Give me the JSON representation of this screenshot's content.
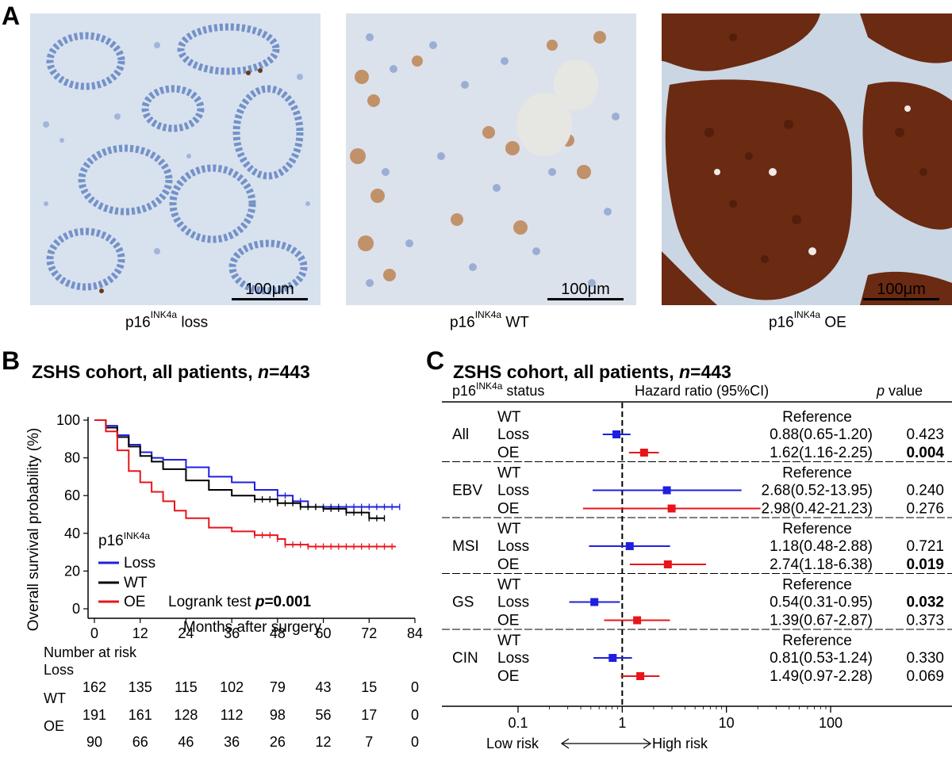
{
  "panel_a": {
    "letter": "A",
    "images": [
      {
        "caption_base": "p16",
        "caption_sup": "INK4a",
        "caption_suffix": "loss",
        "scale": "100μm",
        "stain": "negative"
      },
      {
        "caption_base": "p16",
        "caption_sup": "INK4a",
        "caption_suffix": "WT",
        "scale": "100μm",
        "stain": "patchy"
      },
      {
        "caption_base": "p16",
        "caption_sup": "INK4a",
        "caption_suffix": "OE",
        "scale": "100μm",
        "stain": "diffuse-strong"
      }
    ]
  },
  "panel_b": {
    "letter": "B",
    "title_prefix": "ZSHS cohort, all patients, ",
    "title_n_label": "n",
    "title_n_value": "=443",
    "legend_title_base": "p16",
    "legend_title_sup": "INK4a",
    "logrank_text": "Logrank test ",
    "logrank_p_label": "p",
    "logrank_p_value": "=0.001",
    "risk_header": "Number at risk",
    "colors": {
      "Loss": "#1f1fe0",
      "WT": "#000000",
      "OE": "#e8141b"
    },
    "chart_data": {
      "type": "line",
      "xlabel": "Months after surgery",
      "ylabel": "Overall survival probability (%)",
      "xlim": [
        0,
        84
      ],
      "ylim": [
        0,
        100
      ],
      "xticks": [
        0,
        12,
        24,
        36,
        48,
        60,
        72,
        84
      ],
      "yticks": [
        0,
        20,
        40,
        60,
        80,
        100
      ],
      "series": [
        {
          "name": "Loss",
          "x": [
            0,
            3,
            6,
            9,
            12,
            15,
            18,
            24,
            30,
            36,
            42,
            48,
            52,
            56,
            60,
            66,
            72,
            80
          ],
          "y": [
            100,
            97,
            92,
            87,
            83,
            80,
            79,
            75,
            70,
            67,
            63,
            60,
            57,
            54,
            54,
            54,
            54,
            54
          ]
        },
        {
          "name": "WT",
          "x": [
            0,
            3,
            6,
            9,
            12,
            15,
            18,
            24,
            30,
            36,
            42,
            48,
            54,
            60,
            66,
            72,
            76
          ],
          "y": [
            100,
            96,
            91,
            86,
            81,
            78,
            74,
            68,
            63,
            60,
            58,
            56,
            54,
            53,
            51,
            48,
            48
          ]
        },
        {
          "name": "OE",
          "x": [
            0,
            3,
            6,
            9,
            12,
            15,
            18,
            21,
            24,
            30,
            36,
            42,
            48,
            50,
            56,
            60,
            70,
            79
          ],
          "y": [
            100,
            94,
            84,
            73,
            67,
            62,
            57,
            52,
            48,
            43,
            41,
            39,
            37,
            34,
            33,
            33,
            33,
            33
          ]
        }
      ],
      "risk_table": {
        "times": [
          "0",
          "12",
          "24",
          "36",
          "48",
          "60",
          "72",
          "84"
        ],
        "rows": [
          {
            "label": "Loss",
            "counts": [
              "162",
              "135",
              "115",
              "102",
              "79",
              "43",
              "15",
              "0"
            ]
          },
          {
            "label": "WT",
            "counts": [
              "191",
              "161",
              "128",
              "112",
              "98",
              "56",
              "17",
              "0"
            ]
          },
          {
            "label": "OE",
            "counts": [
              "90",
              "66",
              "46",
              "36",
              "26",
              "12",
              "7",
              "0"
            ]
          }
        ]
      }
    }
  },
  "panel_c": {
    "letter": "C",
    "title_prefix": "ZSHS cohort, all patients, ",
    "title_n_label": "n",
    "title_n_value": "=443",
    "col_status_base": "p16",
    "col_status_sup": "INK4a",
    "col_status_suffix": " status",
    "col_hr": "Hazard ratio (95%CI)",
    "col_p_label": "p",
    "col_p_suffix": " value",
    "low_risk": "Low risk",
    "high_risk": "High risk",
    "colors": {
      "Loss": "#1f1fe0",
      "OE": "#e8141b"
    },
    "chart_data": {
      "type": "scatter",
      "x_scale": "log",
      "xlim": [
        0.1,
        300
      ],
      "xticks": [
        "0.1",
        "1",
        "10",
        "100"
      ],
      "reference_line": 1,
      "groups": [
        {
          "name": "All",
          "rows": [
            {
              "label": "WT",
              "hr_text": "Reference",
              "p": ""
            },
            {
              "label": "Loss",
              "hr": 0.88,
              "lo": 0.65,
              "hi": 1.2,
              "hr_text": "0.88(0.65-1.20)",
              "p": "0.423",
              "bold": false
            },
            {
              "label": "OE",
              "hr": 1.62,
              "lo": 1.16,
              "hi": 2.25,
              "hr_text": "1.62(1.16-2.25)",
              "p": "0.004",
              "bold": true
            }
          ]
        },
        {
          "name": "EBV",
          "rows": [
            {
              "label": "WT",
              "hr_text": "Reference",
              "p": ""
            },
            {
              "label": "Loss",
              "hr": 2.68,
              "lo": 0.52,
              "hi": 13.95,
              "hr_text": "2.68(0.52-13.95)",
              "p": "0.240",
              "bold": false
            },
            {
              "label": "OE",
              "hr": 2.98,
              "lo": 0.42,
              "hi": 21.23,
              "hr_text": "2.98(0.42-21.23)",
              "p": "0.276",
              "bold": false
            }
          ]
        },
        {
          "name": "MSI",
          "rows": [
            {
              "label": "WT",
              "hr_text": "Reference",
              "p": ""
            },
            {
              "label": "Loss",
              "hr": 1.18,
              "lo": 0.48,
              "hi": 2.88,
              "hr_text": "1.18(0.48-2.88)",
              "p": "0.721",
              "bold": false
            },
            {
              "label": "OE",
              "hr": 2.74,
              "lo": 1.18,
              "hi": 6.38,
              "hr_text": "2.74(1.18-6.38)",
              "p": "0.019",
              "bold": true
            }
          ]
        },
        {
          "name": "GS",
          "rows": [
            {
              "label": "WT",
              "hr_text": "Reference",
              "p": ""
            },
            {
              "label": "Loss",
              "hr": 0.54,
              "lo": 0.31,
              "hi": 0.95,
              "hr_text": "0.54(0.31-0.95)",
              "p": "0.032",
              "bold": true
            },
            {
              "label": "OE",
              "hr": 1.39,
              "lo": 0.67,
              "hi": 2.87,
              "hr_text": "1.39(0.67-2.87)",
              "p": "0.373",
              "bold": false
            }
          ]
        },
        {
          "name": "CIN",
          "rows": [
            {
              "label": "WT",
              "hr_text": "Reference",
              "p": ""
            },
            {
              "label": "Loss",
              "hr": 0.81,
              "lo": 0.53,
              "hi": 1.24,
              "hr_text": "0.81(0.53-1.24)",
              "p": "0.330",
              "bold": false
            },
            {
              "label": "OE",
              "hr": 1.49,
              "lo": 0.97,
              "hi": 2.28,
              "hr_text": "1.49(0.97-2.28)",
              "p": "0.069",
              "bold": false
            }
          ]
        }
      ]
    }
  }
}
